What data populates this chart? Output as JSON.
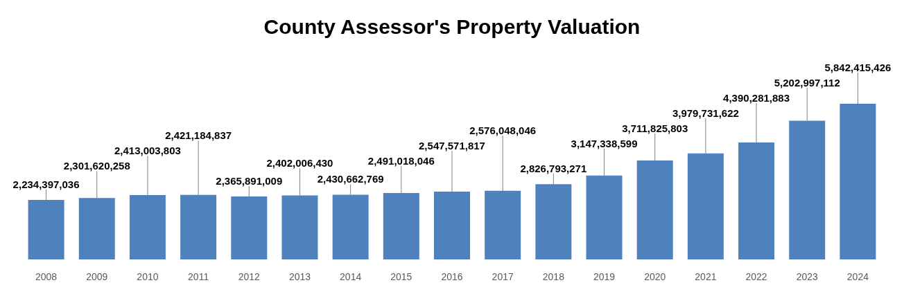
{
  "chart_data": {
    "type": "bar",
    "title": "County Assessor's Property Valuation",
    "categories": [
      "2008",
      "2009",
      "2010",
      "2011",
      "2012",
      "2013",
      "2014",
      "2015",
      "2016",
      "2017",
      "2018",
      "2019",
      "2020",
      "2021",
      "2022",
      "2023",
      "2024"
    ],
    "values": [
      2234397036,
      2301620258,
      2413003803,
      2421184837,
      2365891009,
      2402006430,
      2430662769,
      2491018046,
      2547571817,
      2576048046,
      2826793271,
      3147338599,
      3711825803,
      3979731622,
      4390281883,
      5202997112,
      5842415426
    ],
    "value_labels": [
      "2,234,397,036",
      "2,301,620,258",
      "2,413,003,803",
      "2,421,184,837",
      "2,365,891,009",
      "2,402,006,430",
      "2,430,662,769",
      "2,491,018,046",
      "2,547,571,817",
      "2,576,048,046",
      "2,826,793,271",
      "3,147,338,599",
      "3,711,825,803",
      "3,979,731,622",
      "4,390,281,883",
      "5,202,997,112",
      "5,842,415,426"
    ],
    "color": "#4f81bd",
    "grid": false
  }
}
